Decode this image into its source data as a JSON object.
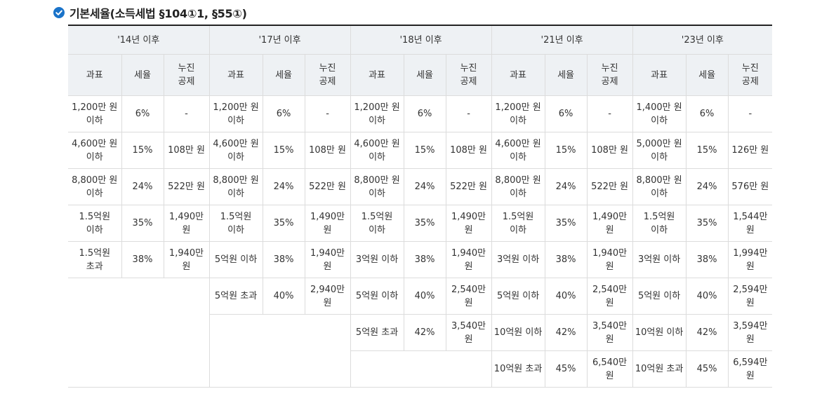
{
  "heading": "기본세율(소득세법 §104①1, §55①)",
  "columns": {
    "base": "과표",
    "rate": "세율",
    "deduction": "누진\n공제"
  },
  "periods": [
    {
      "label": "'14년 이후",
      "rows": [
        {
          "base": "1,200만 원 이하",
          "rate": "6%",
          "deduction": "-"
        },
        {
          "base": "4,600만 원 이하",
          "rate": "15%",
          "deduction": "108만 원"
        },
        {
          "base": "8,800만 원 이하",
          "rate": "24%",
          "deduction": "522만 원"
        },
        {
          "base": "1.5억원 이하",
          "rate": "35%",
          "deduction": "1,490만 원"
        },
        {
          "base": "1.5억원 초과",
          "rate": "38%",
          "deduction": "1,940만 원"
        }
      ]
    },
    {
      "label": "'17년 이후",
      "rows": [
        {
          "base": "1,200만 원 이하",
          "rate": "6%",
          "deduction": "-"
        },
        {
          "base": "4,600만 원 이하",
          "rate": "15%",
          "deduction": "108만 원"
        },
        {
          "base": "8,800만 원 이하",
          "rate": "24%",
          "deduction": "522만 원"
        },
        {
          "base": "1.5억원 이하",
          "rate": "35%",
          "deduction": "1,490만 원"
        },
        {
          "base": "5억원 이하",
          "rate": "38%",
          "deduction": "1,940만 원"
        },
        {
          "base": "5억원 초과",
          "rate": "40%",
          "deduction": "2,940만 원"
        }
      ]
    },
    {
      "label": "'18년 이후",
      "rows": [
        {
          "base": "1,200만 원 이하",
          "rate": "6%",
          "deduction": "-"
        },
        {
          "base": "4,600만 원 이하",
          "rate": "15%",
          "deduction": "108만 원"
        },
        {
          "base": "8,800만 원 이하",
          "rate": "24%",
          "deduction": "522만 원"
        },
        {
          "base": "1.5억원 이하",
          "rate": "35%",
          "deduction": "1,490만 원"
        },
        {
          "base": "3억원 이하",
          "rate": "38%",
          "deduction": "1,940만 원"
        },
        {
          "base": "5억원 이하",
          "rate": "40%",
          "deduction": "2,540만 원"
        },
        {
          "base": "5억원 초과",
          "rate": "42%",
          "deduction": "3,540만 원"
        }
      ]
    },
    {
      "label": "'21년 이후",
      "rows": [
        {
          "base": "1,200만 원 이하",
          "rate": "6%",
          "deduction": "-"
        },
        {
          "base": "4,600만 원 이하",
          "rate": "15%",
          "deduction": "108만 원"
        },
        {
          "base": "8,800만 원 이하",
          "rate": "24%",
          "deduction": "522만 원"
        },
        {
          "base": "1.5억원 이하",
          "rate": "35%",
          "deduction": "1,490만 원"
        },
        {
          "base": "3억원 이하",
          "rate": "38%",
          "deduction": "1,940만 원"
        },
        {
          "base": "5억원 이하",
          "rate": "40%",
          "deduction": "2,540만 원"
        },
        {
          "base": "10억원 이하",
          "rate": "42%",
          "deduction": "3,540만 원"
        },
        {
          "base": "10억원 초과",
          "rate": "45%",
          "deduction": "6,540만 원"
        }
      ]
    },
    {
      "label": "'23년 이후",
      "rows": [
        {
          "base": "1,400만 원 이하",
          "rate": "6%",
          "deduction": "-"
        },
        {
          "base": "5,000만 원 이하",
          "rate": "15%",
          "deduction": "126만 원"
        },
        {
          "base": "8,800만 원 이하",
          "rate": "24%",
          "deduction": "576만 원"
        },
        {
          "base": "1.5억원 이하",
          "rate": "35%",
          "deduction": "1,544만 원"
        },
        {
          "base": "3억원 이하",
          "rate": "38%",
          "deduction": "1,994만 원"
        },
        {
          "base": "5억원 이하",
          "rate": "40%",
          "deduction": "2,594만 원"
        },
        {
          "base": "10억원 이하",
          "rate": "42%",
          "deduction": "3,594만 원"
        },
        {
          "base": "10억원 초과",
          "rate": "45%",
          "deduction": "6,594만 원"
        }
      ]
    }
  ],
  "colors": {
    "accent": "#1a73c9",
    "header_bg": "#eef1f4",
    "border": "#dcdcdc",
    "top_rule": "#222222"
  }
}
